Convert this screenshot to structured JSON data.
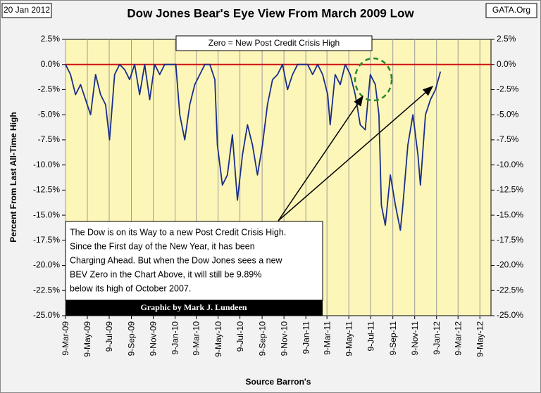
{
  "chart_data": {
    "type": "line",
    "title": "Dow Jones Bear's Eye View From March 2009 Low",
    "date_label": "20 Jan 2012",
    "source_label": "GATA.Org",
    "y_label": "Percent From Last All-Time High",
    "x_label": "Source Barron's",
    "zero_note": "Zero = New Post Credit Crisis High",
    "annotation_lines": [
      "The Dow is on its Way to a new Post Credit Crisis High.",
      "Since the First day of the New Year, it has been",
      "Charging Ahead.  But when the Dow Jones sees a new",
      "BEV Zero in the Chart Above, it will still be 9.89%",
      "below its high of October 2007."
    ],
    "credit": "Graphic by Mark J. Lundeen",
    "color": "#1a2f8a",
    "reference_color": "#d01010",
    "grid": true,
    "x": [
      "2009-03-09",
      "2009-03-23",
      "2009-04-06",
      "2009-04-20",
      "2009-05-04",
      "2009-05-18",
      "2009-06-01",
      "2009-06-15",
      "2009-06-29",
      "2009-07-10",
      "2009-07-24",
      "2009-08-07",
      "2009-08-21",
      "2009-09-04",
      "2009-09-18",
      "2009-10-02",
      "2009-10-16",
      "2009-10-30",
      "2009-11-13",
      "2009-11-27",
      "2009-12-11",
      "2009-12-28",
      "2010-01-11",
      "2010-01-22",
      "2010-02-05",
      "2010-02-19",
      "2010-03-05",
      "2010-03-19",
      "2010-04-02",
      "2010-04-16",
      "2010-04-30",
      "2010-05-07",
      "2010-05-21",
      "2010-06-04",
      "2010-06-18",
      "2010-07-02",
      "2010-07-16",
      "2010-07-30",
      "2010-08-13",
      "2010-08-27",
      "2010-09-10",
      "2010-09-24",
      "2010-10-08",
      "2010-10-22",
      "2010-11-05",
      "2010-11-19",
      "2010-12-03",
      "2010-12-17",
      "2010-12-31",
      "2011-01-14",
      "2011-01-28",
      "2011-02-11",
      "2011-02-25",
      "2011-03-11",
      "2011-03-18",
      "2011-04-01",
      "2011-04-15",
      "2011-04-29",
      "2011-05-13",
      "2011-05-27",
      "2011-06-10",
      "2011-06-24",
      "2011-07-08",
      "2011-07-22",
      "2011-08-01",
      "2011-08-08",
      "2011-08-19",
      "2011-09-02",
      "2011-09-16",
      "2011-09-30",
      "2011-10-07",
      "2011-10-21",
      "2011-11-04",
      "2011-11-18",
      "2011-11-25",
      "2011-12-09",
      "2011-12-23",
      "2012-01-06",
      "2012-01-20"
    ],
    "values": [
      0,
      -1,
      -3,
      -2,
      -3.5,
      -5,
      -1,
      -3,
      -4,
      -7.5,
      -1,
      0,
      -0.5,
      -1.5,
      0,
      -3,
      0,
      -3.5,
      0,
      -1,
      0,
      0,
      0,
      -5,
      -7.5,
      -4,
      -2,
      -1,
      0,
      0,
      -1.5,
      -8,
      -12,
      -11,
      -7,
      -13.5,
      -9,
      -6,
      -8,
      -11,
      -8,
      -4,
      -1.5,
      -1,
      0,
      -2.5,
      -1,
      0,
      0,
      0,
      -1,
      0,
      -1,
      -3,
      -6,
      -1,
      -2,
      0,
      -1,
      -3,
      -6,
      -6.5,
      -1,
      -2,
      -5,
      -14,
      -16,
      -11,
      -14,
      -16.5,
      -14,
      -8,
      -5,
      -9,
      -12,
      -5,
      -3.5,
      -2.5,
      -0.7
    ],
    "xlim": [
      "2009-03-09",
      "2012-06-09"
    ],
    "xticks": [
      {
        "value": "2009-03-09",
        "label": "9-Mar-09"
      },
      {
        "value": "2009-05-09",
        "label": "9-May-09"
      },
      {
        "value": "2009-07-09",
        "label": "9-Jul-09"
      },
      {
        "value": "2009-09-09",
        "label": "9-Sep-09"
      },
      {
        "value": "2009-11-09",
        "label": "9-Nov-09"
      },
      {
        "value": "2010-01-09",
        "label": "9-Jan-10"
      },
      {
        "value": "2010-03-09",
        "label": "9-Mar-10"
      },
      {
        "value": "2010-05-09",
        "label": "9-May-10"
      },
      {
        "value": "2010-07-09",
        "label": "9-Jul-10"
      },
      {
        "value": "2010-09-09",
        "label": "9-Sep-10"
      },
      {
        "value": "2010-11-09",
        "label": "9-Nov-10"
      },
      {
        "value": "2011-01-09",
        "label": "9-Jan-11"
      },
      {
        "value": "2011-03-09",
        "label": "9-Mar-11"
      },
      {
        "value": "2011-05-09",
        "label": "9-May-11"
      },
      {
        "value": "2011-07-09",
        "label": "9-Jul-11"
      },
      {
        "value": "2011-09-09",
        "label": "9-Sep-11"
      },
      {
        "value": "2011-11-09",
        "label": "9-Nov-11"
      },
      {
        "value": "2012-01-09",
        "label": "9-Jan-12"
      },
      {
        "value": "2012-03-09",
        "label": "9-Mar-12"
      },
      {
        "value": "2012-05-09",
        "label": "9-May-12"
      }
    ],
    "ylim": [
      -25,
      2.5
    ],
    "yticks": [
      {
        "value": 2.5,
        "label": "2.5%"
      },
      {
        "value": 0,
        "label": "0.0%"
      },
      {
        "value": -2.5,
        "label": "-2.5%"
      },
      {
        "value": -5,
        "label": "-5.0%"
      },
      {
        "value": -7.5,
        "label": "-7.5%"
      },
      {
        "value": -10,
        "label": "-10.0%"
      },
      {
        "value": -12.5,
        "label": "-12.5%"
      },
      {
        "value": -15,
        "label": "-15.0%"
      },
      {
        "value": -17.5,
        "label": "-17.5%"
      },
      {
        "value": -20,
        "label": "-20.0%"
      },
      {
        "value": -22.5,
        "label": "-22.5%"
      },
      {
        "value": -25,
        "label": "-25.0%"
      }
    ],
    "reference_line": 0
  }
}
